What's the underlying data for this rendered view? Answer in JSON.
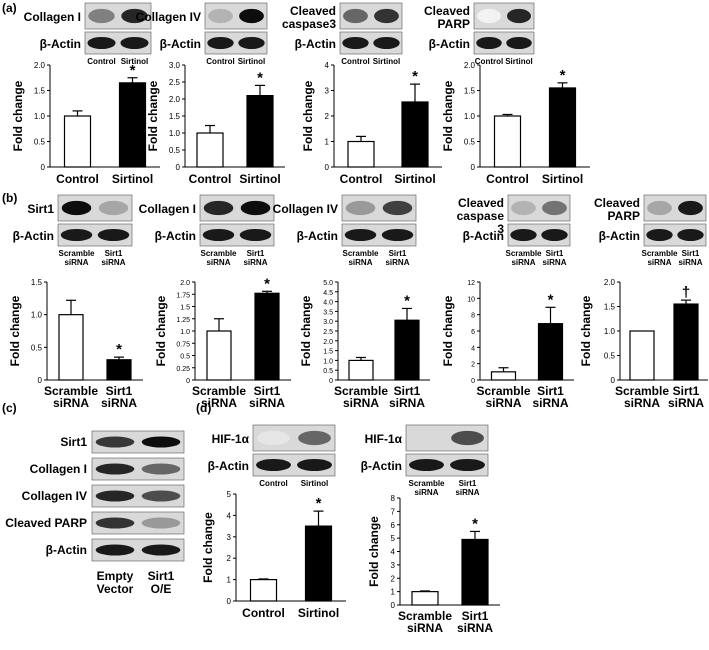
{
  "panel_labels": [
    "(a)",
    "(b)",
    "(c)",
    "(d)"
  ],
  "blot_reference_label": "β-Actin",
  "chart_data": [
    {
      "panel": "(a)",
      "type": "bar",
      "blot_label": "Collagen I",
      "categories": [
        "Control",
        "Sirtinol"
      ],
      "lane_labels": [
        "Control",
        "Sirtinol"
      ],
      "values": [
        1.0,
        1.65
      ],
      "errors": [
        0.1,
        0.1
      ],
      "significance": [
        "",
        "*"
      ],
      "ylabel": "Fold change",
      "ylim": [
        0,
        2.0
      ],
      "yticks": [
        "0",
        "0.5",
        "1.0",
        "1.5",
        "2.0"
      ],
      "fills": [
        "#ffffff",
        "#000000"
      ]
    },
    {
      "panel": "(a)",
      "type": "bar",
      "blot_label": "Collagen IV",
      "categories": [
        "Control",
        "Sirtinol"
      ],
      "lane_labels": [
        "Control",
        "Sirtinol"
      ],
      "values": [
        1.0,
        2.1
      ],
      "errors": [
        0.22,
        0.3
      ],
      "significance": [
        "",
        "*"
      ],
      "ylabel": "Fold change",
      "ylim": [
        0,
        3.0
      ],
      "yticks": [
        "0",
        "0.5",
        "1.0",
        "1.5",
        "2.0",
        "2.5",
        "3.0"
      ],
      "fills": [
        "#ffffff",
        "#000000"
      ]
    },
    {
      "panel": "(a)",
      "type": "bar",
      "blot_label": "Cleaved caspase3",
      "categories": [
        "Control",
        "Sirtinol"
      ],
      "lane_labels": [
        "Control",
        "Sirtinol"
      ],
      "values": [
        1.0,
        2.55
      ],
      "errors": [
        0.2,
        0.7
      ],
      "significance": [
        "",
        "*"
      ],
      "ylabel": "Fold change",
      "ylim": [
        0,
        4
      ],
      "yticks": [
        "0",
        "1",
        "2",
        "3",
        "4"
      ],
      "fills": [
        "#ffffff",
        "#000000"
      ]
    },
    {
      "panel": "(a)",
      "type": "bar",
      "blot_label": "Cleaved PARP",
      "categories": [
        "Control",
        "Sirtinol"
      ],
      "lane_labels": [
        "Control",
        "Sirtinol"
      ],
      "values": [
        1.0,
        1.55
      ],
      "errors": [
        0.03,
        0.1
      ],
      "significance": [
        "",
        "*"
      ],
      "ylabel": "Fold change",
      "ylim": [
        0,
        2.0
      ],
      "yticks": [
        "0",
        "0.5",
        "1.0",
        "1.5",
        "2.0"
      ],
      "fills": [
        "#ffffff",
        "#000000"
      ]
    },
    {
      "panel": "(b)",
      "type": "bar",
      "blot_label": "Sirt1",
      "categories": [
        "Scramble siRNA",
        "Sirt1 siRNA"
      ],
      "lane_labels": [
        "Scramble siRNA",
        "Sirt1 siRNA"
      ],
      "values": [
        1.0,
        0.31
      ],
      "errors": [
        0.22,
        0.04
      ],
      "significance": [
        "",
        "*"
      ],
      "ylabel": "Fold change",
      "ylim": [
        0,
        1.5
      ],
      "yticks": [
        "0",
        "0.5",
        "1.0",
        "1.5"
      ],
      "fills": [
        "#ffffff",
        "#000000"
      ]
    },
    {
      "panel": "(b)",
      "type": "bar",
      "blot_label": "Collagen I",
      "categories": [
        "Scramble siRNA",
        "Sirt1 siRNA"
      ],
      "lane_labels": [
        "Scramble siRNA",
        "Sirt1 siRNA"
      ],
      "values": [
        1.0,
        1.77
      ],
      "errors": [
        0.25,
        0.04
      ],
      "significance": [
        "",
        "*"
      ],
      "ylabel": "Fold change",
      "ylim": [
        0,
        2.0
      ],
      "yticks": [
        "0",
        "0.25",
        "0.5",
        "0.75",
        "1.0",
        "1.25",
        "1.5",
        "1.75",
        "2.0"
      ],
      "fills": [
        "#ffffff",
        "#000000"
      ]
    },
    {
      "panel": "(b)",
      "type": "bar",
      "blot_label": "Collagen IV",
      "categories": [
        "Scramble siRNA",
        "Sirt1 siRNA"
      ],
      "lane_labels": [
        "Scramble siRNA",
        "Sirt1 siRNA"
      ],
      "values": [
        1.0,
        3.05
      ],
      "errors": [
        0.15,
        0.6
      ],
      "significance": [
        "",
        "*"
      ],
      "ylabel": "Fold change",
      "ylim": [
        0,
        5.0
      ],
      "yticks": [
        "0",
        "0.5",
        "1.0",
        "1.5",
        "2.0",
        "2.5",
        "3.0",
        "3.5",
        "4.0",
        "4.5",
        "5.0"
      ],
      "fills": [
        "#ffffff",
        "#000000"
      ]
    },
    {
      "panel": "(b)",
      "type": "bar",
      "blot_label": "Cleaved caspase 3",
      "categories": [
        "Scramble siRNA",
        "Sirt1 siRNA"
      ],
      "lane_labels": [
        "Scramble siRNA",
        "Sirt1 siRNA"
      ],
      "values": [
        1.0,
        6.9
      ],
      "errors": [
        0.5,
        2.0
      ],
      "significance": [
        "",
        "*"
      ],
      "ylabel": "Fold change",
      "ylim": [
        0,
        12
      ],
      "yticks": [
        "0",
        "2",
        "4",
        "6",
        "8",
        "10",
        "12"
      ],
      "fills": [
        "#ffffff",
        "#000000"
      ]
    },
    {
      "panel": "(b)",
      "type": "bar",
      "blot_label": "Cleaved PARP",
      "categories": [
        "Scramble siRNA",
        "Sirt1 siRNA"
      ],
      "lane_labels": [
        "Scramble siRNA",
        "Sirt1 siRNA"
      ],
      "values": [
        1.0,
        1.55
      ],
      "errors": [
        0,
        0.08
      ],
      "significance": [
        "",
        "†"
      ],
      "ylabel": "Fold change",
      "ylim": [
        0,
        2.0
      ],
      "yticks": [
        "0",
        "0.5",
        "1.0",
        "1.5",
        "2.0"
      ],
      "fills": [
        "#ffffff",
        "#000000"
      ]
    },
    {
      "panel": "(d)",
      "type": "bar",
      "blot_label": "HIF-1α",
      "categories": [
        "Control",
        "Sirtinol"
      ],
      "lane_labels": [
        "Control",
        "Sirtinol"
      ],
      "values": [
        1.0,
        3.5
      ],
      "errors": [
        0.03,
        0.7
      ],
      "significance": [
        "",
        "*"
      ],
      "ylabel": "Fold change",
      "ylim": [
        0,
        5
      ],
      "yticks": [
        "0",
        "1",
        "2",
        "3",
        "4",
        "5"
      ],
      "fills": [
        "#ffffff",
        "#000000"
      ]
    },
    {
      "panel": "(d)",
      "type": "bar",
      "blot_label": "HIF-1α",
      "categories": [
        "Scramble siRNA",
        "Sirt1 siRNA"
      ],
      "lane_labels": [
        "Scramble siRNA",
        "Sirt1 siRNA"
      ],
      "values": [
        1.0,
        4.9
      ],
      "errors": [
        0.05,
        0.6
      ],
      "significance": [
        "",
        "*"
      ],
      "ylabel": "Fold change",
      "ylim": [
        0,
        8
      ],
      "yticks": [
        "0",
        "1",
        "2",
        "3",
        "4",
        "5",
        "6",
        "7",
        "8"
      ],
      "fills": [
        "#ffffff",
        "#000000"
      ]
    }
  ],
  "panel_c": {
    "rows": [
      "Sirt1",
      "Collagen I",
      "Collagen IV",
      "Cleaved PARP",
      "β-Actin"
    ],
    "lanes": [
      "Empty Vector",
      "Sirt1 O/E"
    ],
    "band_intensity": [
      [
        0.78,
        0.95
      ],
      [
        0.85,
        0.6
      ],
      [
        0.85,
        0.7
      ],
      [
        0.8,
        0.4
      ],
      [
        0.9,
        0.9
      ]
    ]
  }
}
